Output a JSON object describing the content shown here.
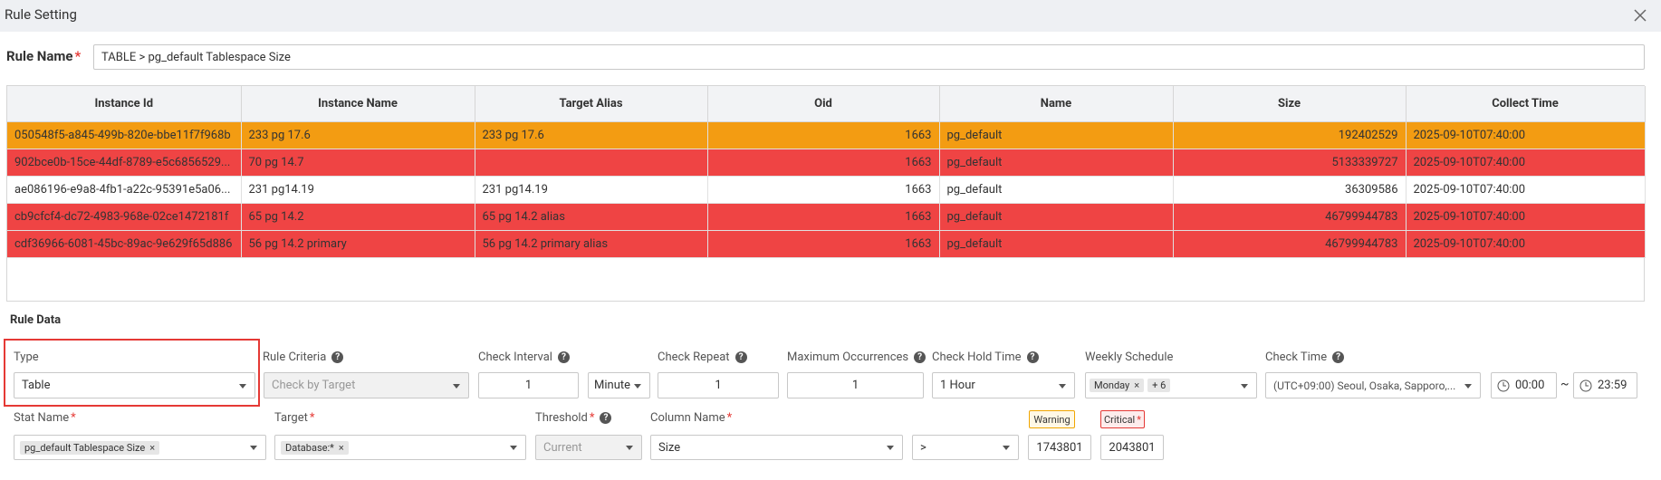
{
  "header": {
    "title": "Rule Setting"
  },
  "rule_name": {
    "label": "Rule Name",
    "value": "TABLE > pg_default Tablespace Size"
  },
  "table": {
    "columns": [
      "Instance Id",
      "Instance Name",
      "Target Alias",
      "Oid",
      "Name",
      "Size",
      "Collect Time"
    ],
    "rows": [
      [
        "050548f5-a845-499b-820e-bbe11f7f968b",
        "233 pg 17.6",
        "233 pg 17.6",
        1663,
        "pg_default",
        192402529,
        "2025-09-10T07:40:00"
      ],
      [
        "902bce0b-15ce-44df-8789-e5c6856529...",
        "70 pg 14.7",
        "",
        1663,
        "pg_default",
        5133339727,
        "2025-09-10T07:40:00"
      ],
      [
        "ae086196-e9a8-4fb1-a22c-95391e5a06...",
        "231 pg14.19",
        "231 pg14.19",
        1663,
        "pg_default",
        36309586,
        "2025-09-10T07:40:00"
      ],
      [
        "cb9cfcf4-dc72-4983-968e-02ce1472181f",
        "65 pg 14.2",
        "65 pg 14.2 alias",
        1663,
        "pg_default",
        46799944783,
        "2025-09-10T07:40:00"
      ],
      [
        "cdf36966-6081-45bc-89ac-9e629f65d886",
        "56 pg 14.2 primary",
        "56 pg 14.2 primary alias",
        1663,
        "pg_default",
        46799944783,
        "2025-09-10T07:40:00"
      ]
    ]
  },
  "rule_data": {
    "title": "Rule Data",
    "type": {
      "label": "Type",
      "value": "Table"
    },
    "rule_criteria": {
      "label": "Rule Criteria",
      "value": "Check by Target"
    },
    "check_interval": {
      "label": "Check Interval",
      "value": 1,
      "unit": "Minute"
    },
    "check_repeat": {
      "label": "Check Repeat",
      "value": 1
    },
    "maximum_occurrences": {
      "label": "Maximum Occurrences",
      "value": 1
    },
    "check_hold_time": {
      "label": "Check Hold Time",
      "value": "1 Hour"
    },
    "weekly_schedule": {
      "label": "Weekly Schedule",
      "value": "Monday",
      "more": "+ 6"
    },
    "check_time": {
      "label": "Check Time",
      "timezone": "(UTC+09:00) Seoul, Osaka, Sapporo,...",
      "start": "00:00",
      "separator": "~",
      "end": "23:59"
    },
    "stat_name": {
      "label": "Stat Name",
      "value": "pg_default Tablespace Size"
    },
    "target": {
      "label": "Target",
      "value": "Database:*"
    },
    "threshold": {
      "label": "Threshold",
      "value": "Current"
    },
    "column_name": {
      "label": "Column Name",
      "value": "Size",
      "operator": ">"
    },
    "warning": {
      "label": "Warning",
      "value": 1743801
    },
    "critical": {
      "label": "Critical",
      "value": 2043801
    }
  }
}
